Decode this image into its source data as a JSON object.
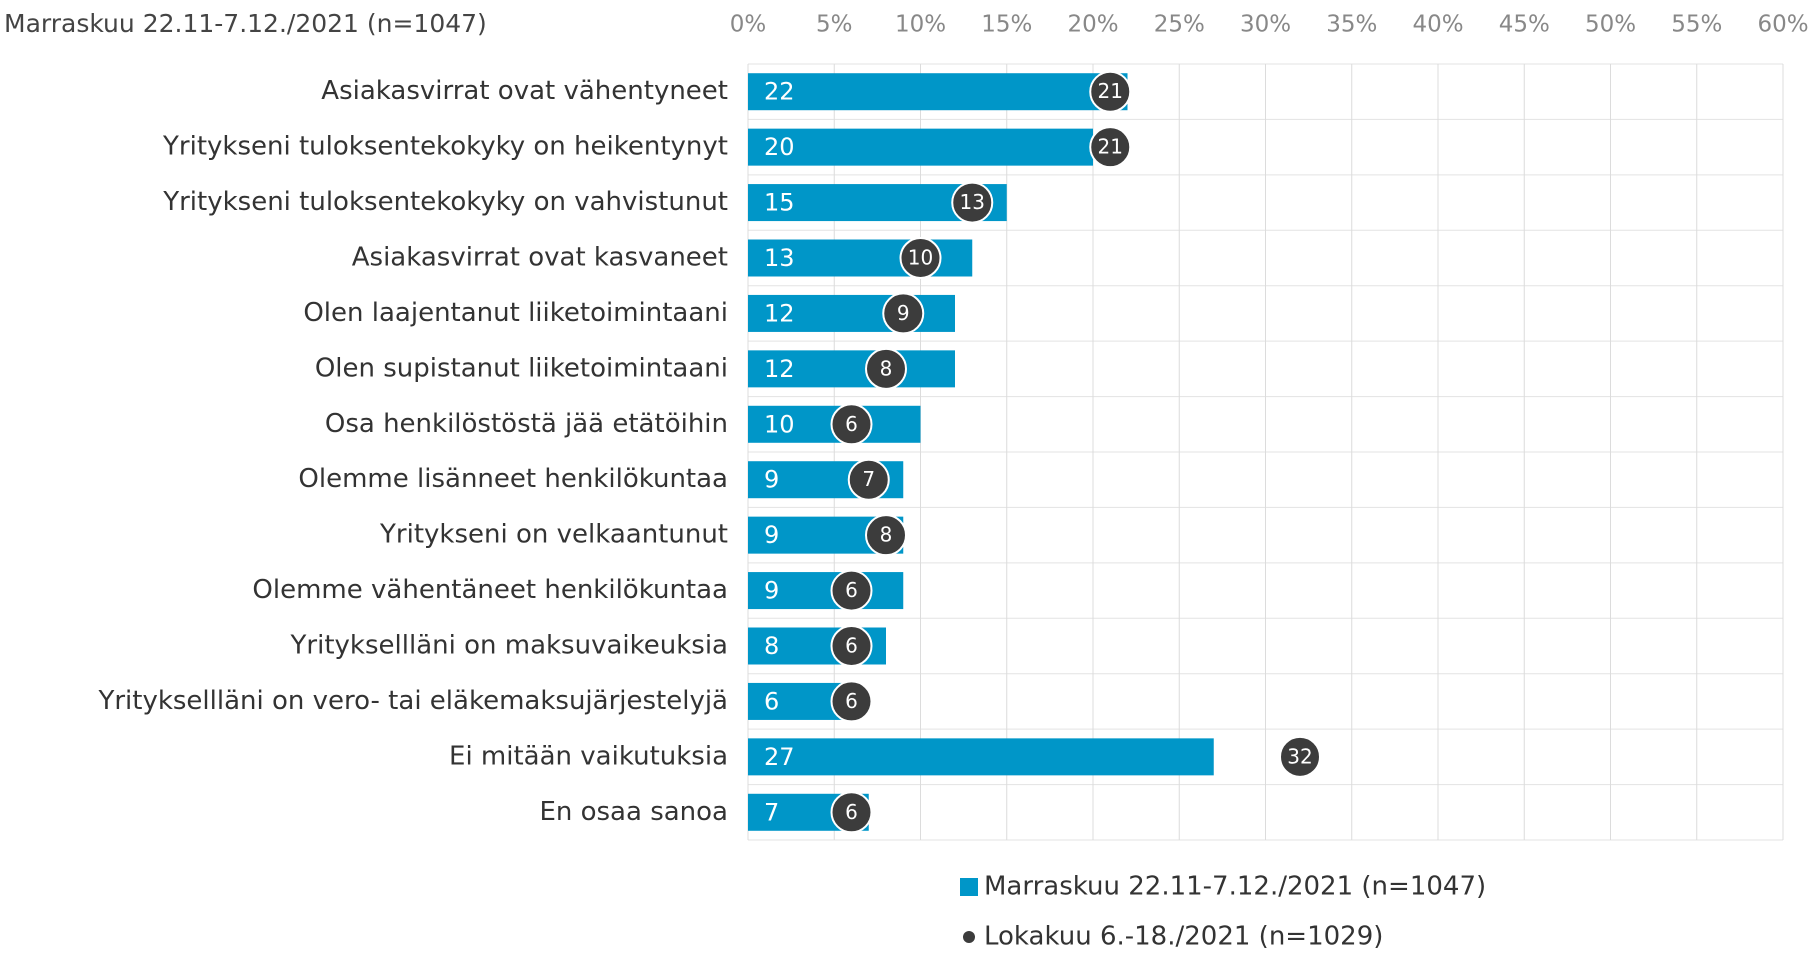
{
  "chart_data": {
    "type": "bar",
    "orientation": "horizontal",
    "subtitle": "Marraskuu 22.11-7.12./2021 (n=1047)",
    "categories": [
      "Asiakasvirrat ovat vähentyneet",
      "Yritykseni tuloksentekokyky on heikentynyt",
      "Yritykseni tuloksentekokyky on vahvistunut",
      "Asiakasvirrat ovat kasvaneet",
      "Olen laajentanut liiketoimintaani",
      "Olen supistanut liiketoimintaani",
      "Osa henkilöstöstä jää etätöihin",
      "Olemme lisänneet henkilökuntaa",
      "Yritykseni on velkaantunut",
      "Olemme vähentäneet henkilökuntaa",
      "Yrityksellläni on maksuvaikeuksia",
      "Yrityksellläni on vero- tai eläkemaksujärjestelyjä",
      "Ei mitään vaikutuksia",
      "En osaa sanoa"
    ],
    "series": [
      {
        "name": "Marraskuu 22.11-7.12./2021 (n=1047)",
        "type": "bar",
        "color": "#0096c8",
        "values": [
          22,
          20,
          15,
          13,
          12,
          12,
          10,
          9,
          9,
          9,
          8,
          6,
          27,
          7
        ]
      },
      {
        "name": "Lokakuu 6.-18./2021 (n=1029)",
        "type": "scatter",
        "color": "#3c3c3c",
        "values": [
          21,
          21,
          13,
          10,
          9,
          8,
          6,
          7,
          8,
          6,
          6,
          6,
          32,
          6
        ]
      }
    ],
    "xlim": [
      0,
      60
    ],
    "xticks": [
      {
        "value": 0,
        "label": "0%"
      },
      {
        "value": 5,
        "label": "5%"
      },
      {
        "value": 10,
        "label": "10%"
      },
      {
        "value": 15,
        "label": "15%"
      },
      {
        "value": 20,
        "label": "20%"
      },
      {
        "value": 25,
        "label": "25%"
      },
      {
        "value": 30,
        "label": "30%"
      },
      {
        "value": 35,
        "label": "35%"
      },
      {
        "value": 40,
        "label": "40%"
      },
      {
        "value": 45,
        "label": "45%"
      },
      {
        "value": 50,
        "label": "50%"
      },
      {
        "value": 55,
        "label": "55%"
      },
      {
        "value": 60,
        "label": "60%"
      }
    ],
    "grid": true,
    "legend": "bottom"
  }
}
